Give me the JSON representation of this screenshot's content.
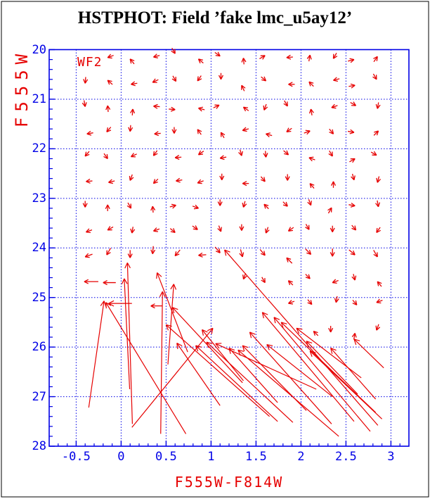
{
  "figure": {
    "title": "HSTPHOT: Field ’fake lmc_u5ay12’",
    "annotation": "WF2"
  },
  "chart_data": {
    "type": "scatter",
    "subtype": "quiver-photometric-error-vectors",
    "title": "HSTPHOT: Field ’fake lmc_u5ay12’",
    "xlabel": "F555W-F814W",
    "ylabel": "F555W",
    "annotation": "WF2",
    "xlim": [
      -0.8,
      3.2
    ],
    "ylim": [
      20,
      28
    ],
    "y_inverted": true,
    "grid": "dotted major gridlines",
    "legend": "none",
    "colors": {
      "axis": "#0000e6",
      "data": "#e60000",
      "title": "#000000",
      "border": "#000000"
    },
    "x_ticks": {
      "major": [
        -0.5,
        0,
        0.5,
        1,
        1.5,
        2,
        2.5,
        3
      ],
      "labels": [
        "-0.5",
        "0",
        "0.5",
        "1",
        "1.5",
        "2",
        "2.5",
        "3"
      ],
      "minor_step": 0.1
    },
    "y_ticks": {
      "major": [
        20,
        21,
        22,
        23,
        24,
        25,
        26,
        27,
        28
      ],
      "labels": [
        "20",
        "21",
        "22",
        "23",
        "24",
        "25",
        "26",
        "27",
        "28"
      ],
      "minor_step": 0.2
    },
    "small_arrows_format": "[color, magnitude, pointing_angle_deg (0=right,90=up), optional shaft_px]",
    "small_arrows": [
      [
        -0.15,
        20.16,
        200
      ],
      [
        0.1,
        20.19,
        130
      ],
      [
        0.36,
        20.15,
        195
      ],
      [
        0.6,
        20.08,
        300
      ],
      [
        0.86,
        20.19,
        140
      ],
      [
        1.1,
        20.13,
        325
      ],
      [
        1.36,
        20.17,
        95
      ],
      [
        1.6,
        20.12,
        30
      ],
      [
        1.84,
        20.16,
        185
      ],
      [
        2.1,
        20.11,
        80
      ],
      [
        2.36,
        20.18,
        240
      ],
      [
        2.59,
        20.2,
        15
      ],
      [
        2.85,
        20.14,
        55
      ],
      [
        -0.4,
        20.68,
        265
      ],
      [
        -0.15,
        20.62,
        140
      ],
      [
        0.11,
        20.7,
        190
      ],
      [
        0.35,
        20.66,
        205
      ],
      [
        0.61,
        20.64,
        300
      ],
      [
        0.85,
        20.63,
        235
      ],
      [
        1.11,
        20.6,
        270
      ],
      [
        1.34,
        20.72,
        115
      ],
      [
        1.61,
        20.63,
        320
      ],
      [
        1.86,
        20.7,
        180
      ],
      [
        2.09,
        20.65,
        135
      ],
      [
        2.36,
        20.62,
        195
      ],
      [
        2.6,
        20.72,
        10
      ],
      [
        2.84,
        20.6,
        300
      ],
      [
        -0.4,
        21.15,
        280
      ],
      [
        -0.15,
        21.13,
        95
      ],
      [
        0.13,
        21.2,
        85
      ],
      [
        0.36,
        21.14,
        175
      ],
      [
        0.6,
        21.21,
        355
      ],
      [
        0.86,
        21.18,
        165
      ],
      [
        1.09,
        21.12,
        25
      ],
      [
        1.36,
        21.16,
        145
      ],
      [
        1.59,
        21.22,
        250
      ],
      [
        1.85,
        21.14,
        300
      ],
      [
        2.11,
        21.2,
        100
      ],
      [
        2.34,
        21.17,
        200
      ],
      [
        2.61,
        21.13,
        330
      ],
      [
        2.85,
        21.19,
        260
      ],
      [
        -0.38,
        21.7,
        190
      ],
      [
        -0.16,
        21.66,
        230
      ],
      [
        0.1,
        21.65,
        265
      ],
      [
        0.37,
        21.7,
        185
      ],
      [
        0.59,
        21.69,
        270
      ],
      [
        0.85,
        21.61,
        125
      ],
      [
        1.11,
        21.67,
        120
      ],
      [
        1.35,
        21.63,
        195
      ],
      [
        1.61,
        21.7,
        165
      ],
      [
        1.84,
        21.66,
        215
      ],
      [
        2.1,
        21.64,
        20
      ],
      [
        2.36,
        21.7,
        310
      ],
      [
        2.59,
        21.67,
        350
      ],
      [
        2.86,
        21.64,
        45
      ],
      [
        -0.4,
        22.15,
        230
      ],
      [
        -0.15,
        22.2,
        305
      ],
      [
        0.11,
        22.16,
        205
      ],
      [
        0.36,
        22.14,
        235
      ],
      [
        0.6,
        22.18,
        185
      ],
      [
        0.86,
        22.12,
        215
      ],
      [
        1.1,
        22.19,
        190
      ],
      [
        1.34,
        22.14,
        285
      ],
      [
        1.61,
        22.17,
        275
      ],
      [
        1.86,
        22.12,
        320
      ],
      [
        2.09,
        22.18,
        160
      ],
      [
        2.35,
        22.15,
        300
      ],
      [
        2.6,
        22.2,
        30
      ],
      [
        2.84,
        22.13,
        330
      ],
      [
        -0.39,
        22.66,
        185
      ],
      [
        -0.14,
        22.68,
        195
      ],
      [
        0.1,
        22.64,
        250
      ],
      [
        0.36,
        22.7,
        225
      ],
      [
        0.61,
        22.65,
        190
      ],
      [
        0.85,
        22.69,
        200
      ],
      [
        1.12,
        22.63,
        270
      ],
      [
        1.35,
        22.7,
        180
      ],
      [
        1.6,
        22.66,
        310
      ],
      [
        1.85,
        22.64,
        270
      ],
      [
        2.1,
        22.7,
        130
      ],
      [
        2.36,
        22.66,
        90
      ],
      [
        2.59,
        22.63,
        285
      ],
      [
        2.85,
        22.68,
        255
      ],
      [
        -0.4,
        23.18,
        270
      ],
      [
        -0.15,
        23.13,
        90
      ],
      [
        0.11,
        23.2,
        300
      ],
      [
        0.35,
        23.16,
        95
      ],
      [
        0.61,
        23.14,
        15
      ],
      [
        0.86,
        23.2,
        340
      ],
      [
        1.1,
        23.15,
        270
      ],
      [
        1.36,
        23.18,
        255
      ],
      [
        1.59,
        23.12,
        135
      ],
      [
        1.85,
        23.16,
        315
      ],
      [
        2.11,
        23.14,
        290
      ],
      [
        2.34,
        23.19,
        60
      ],
      [
        2.6,
        23.15,
        350
      ],
      [
        2.86,
        23.17,
        280
      ],
      [
        -0.39,
        23.68,
        200
      ],
      [
        -0.15,
        23.64,
        210
      ],
      [
        0.12,
        23.7,
        260
      ],
      [
        0.36,
        23.66,
        200
      ],
      [
        0.6,
        23.69,
        320
      ],
      [
        0.85,
        23.63,
        325
      ],
      [
        1.11,
        23.67,
        290
      ],
      [
        1.34,
        23.65,
        270
      ],
      [
        1.61,
        23.7,
        250
      ],
      [
        1.86,
        23.66,
        215
      ],
      [
        2.09,
        23.63,
        300
      ],
      [
        2.35,
        23.68,
        270
      ],
      [
        2.61,
        23.64,
        310
      ],
      [
        2.84,
        23.69,
        235
      ],
      [
        -0.4,
        24.18,
        200,
        11
      ],
      [
        -0.16,
        24.14,
        240,
        11
      ],
      [
        0.1,
        24.2,
        270,
        11
      ],
      [
        0.35,
        24.12,
        265,
        11
      ],
      [
        0.6,
        24.16,
        230,
        11
      ],
      [
        0.86,
        24.15,
        185,
        11
      ],
      [
        1.1,
        24.1,
        310,
        11
      ],
      [
        1.35,
        24.18,
        285,
        11
      ],
      [
        1.6,
        24.15,
        310,
        11
      ],
      [
        1.84,
        24.2,
        135,
        11
      ],
      [
        2.11,
        24.13,
        315,
        11
      ],
      [
        2.35,
        24.17,
        270,
        11
      ],
      [
        2.6,
        24.14,
        320,
        11
      ],
      [
        2.85,
        24.18,
        300,
        11
      ],
      [
        -0.41,
        24.68,
        180,
        20
      ],
      [
        -0.2,
        24.7,
        180,
        18
      ],
      [
        1.36,
        24.63,
        250
      ],
      [
        1.6,
        24.7,
        300
      ],
      [
        1.86,
        24.66,
        135
      ],
      [
        2.1,
        24.62,
        315
      ],
      [
        2.35,
        24.7,
        200
      ],
      [
        2.6,
        24.65,
        285
      ],
      [
        2.85,
        24.68,
        130
      ],
      [
        0.33,
        25.17,
        180,
        16
      ],
      [
        1.86,
        25.12,
        200
      ],
      [
        2.12,
        25.14,
        310
      ],
      [
        2.39,
        25.1,
        260
      ],
      [
        2.62,
        25.15,
        310
      ],
      [
        2.84,
        25.1,
        200
      ],
      [
        2.14,
        25.68,
        135
      ],
      [
        2.33,
        25.7,
        270
      ],
      [
        2.6,
        25.72,
        80
      ],
      [
        2.84,
        25.66,
        250
      ]
    ],
    "long_arrows_format": "[head_color, head_mag, tail_color, tail_mag]",
    "long_arrows": [
      [
        0.07,
        24.3,
        0.125,
        27.55
      ],
      [
        0.035,
        24.62,
        0.095,
        26.85
      ],
      [
        -0.19,
        25.07,
        -0.36,
        27.22
      ],
      [
        -0.17,
        25.1,
        0.72,
        27.75
      ],
      [
        -0.14,
        25.12,
        0.12,
        25.12
      ],
      [
        0.46,
        24.88,
        0.44,
        27.75
      ],
      [
        0.585,
        24.73,
        0.52,
        26.35
      ],
      [
        0.4,
        24.5,
        0.74,
        26.1
      ],
      [
        1.15,
        24.04,
        2.855,
        27.58
      ],
      [
        0.5,
        25.55,
        1.65,
        27.4
      ],
      [
        0.57,
        25.2,
        1.35,
        26.72
      ],
      [
        0.62,
        25.92,
        1.1,
        27.18
      ],
      [
        0.83,
        25.97,
        1.74,
        27.5
      ],
      [
        0.95,
        25.9,
        1.91,
        27.52
      ],
      [
        1.3,
        26.06,
        2.42,
        27.8
      ],
      [
        1.43,
        25.7,
        2.34,
        27.55
      ],
      [
        1.57,
        25.3,
        2.59,
        27.5
      ],
      [
        1.7,
        25.4,
        2.77,
        27.7
      ],
      [
        1.78,
        25.5,
        2.83,
        27.32
      ],
      [
        1.95,
        25.62,
        2.67,
        26.62
      ],
      [
        2.06,
        25.88,
        2.63,
        26.95
      ],
      [
        2.1,
        26.08,
        2.9,
        27.45
      ],
      [
        2.59,
        25.84,
        2.92,
        26.42
      ],
      [
        1.35,
        25.97,
        2.06,
        27.28
      ],
      [
        0.9,
        25.65,
        1.36,
        26.68
      ],
      [
        1.05,
        25.93,
        2.17,
        26.85
      ],
      [
        1.2,
        26.02,
        1.74,
        27.12
      ],
      [
        2.33,
        26.02,
        2.83,
        27.05
      ],
      [
        1.02,
        25.62,
        0.12,
        27.62
      ],
      [
        1.62,
        25.95,
        2.35,
        27.0
      ]
    ]
  }
}
